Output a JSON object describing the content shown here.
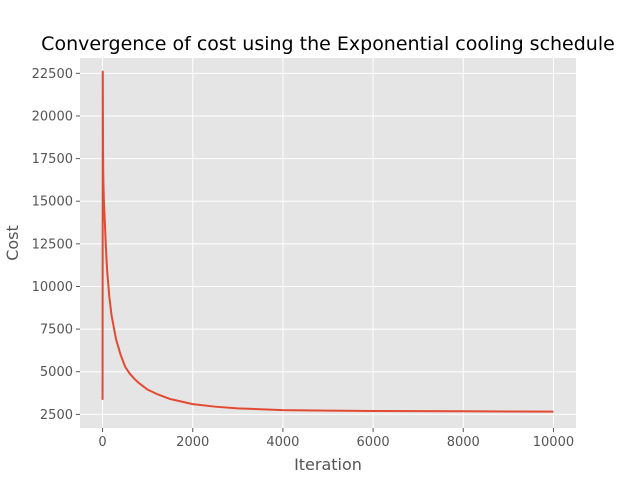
{
  "chart_data": {
    "type": "line",
    "title": "Convergence of cost using the Exponential cooling schedule",
    "xlabel": "Iteration",
    "ylabel": "Cost",
    "xlim": [
      -500,
      10500
    ],
    "ylim": [
      1700,
      23400
    ],
    "grid": true,
    "style": "ggplot",
    "colors": {
      "background": "#e5e5e5",
      "grid": "#ffffff",
      "line": "#e24a33",
      "text": "#555555"
    },
    "x_ticks": [
      0,
      2000,
      4000,
      6000,
      8000,
      10000
    ],
    "x_tick_labels": [
      "0",
      "2000",
      "4000",
      "6000",
      "8000",
      "10000"
    ],
    "y_ticks": [
      2500,
      5000,
      7500,
      10000,
      12500,
      15000,
      17500,
      20000,
      22500
    ],
    "y_tick_labels": [
      "2500",
      "5000",
      "7500",
      "10000",
      "12500",
      "15000",
      "17500",
      "20000",
      "22500"
    ],
    "series": [
      {
        "x": [
          0,
          5,
          10,
          15,
          20,
          30,
          40,
          50,
          75,
          100,
          150,
          200,
          300,
          400,
          500,
          600,
          700,
          800,
          1000,
          1200,
          1500,
          2000,
          2500,
          3000,
          4000,
          5000,
          6000,
          7000,
          8000,
          9000,
          10000
        ],
        "values": [
          3350,
          22600,
          18600,
          16800,
          16000,
          15000,
          14400,
          13800,
          12300,
          11000,
          9400,
          8300,
          6900,
          6000,
          5300,
          4900,
          4600,
          4350,
          3950,
          3700,
          3400,
          3100,
          2950,
          2850,
          2750,
          2720,
          2700,
          2690,
          2680,
          2670,
          2660
        ]
      }
    ]
  }
}
